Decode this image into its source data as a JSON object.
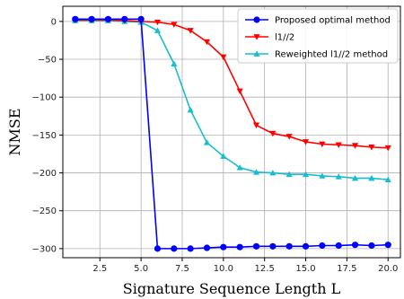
{
  "chart_data": {
    "type": "line",
    "xlabel": "Signature Sequence Length L",
    "ylabel": "NMSE",
    "xlim": [
      0.25,
      20.75
    ],
    "ylim": [
      -312,
      20
    ],
    "xticks": [
      2.5,
      5.0,
      7.5,
      10.0,
      12.5,
      15.0,
      17.5,
      20.0
    ],
    "xtick_labels": [
      "2.5",
      "5.0",
      "7.5",
      "10.0",
      "12.5",
      "15.0",
      "17.5",
      "20.0"
    ],
    "yticks": [
      0,
      -50,
      -100,
      -150,
      -200,
      -250,
      -300
    ],
    "ytick_labels": [
      "0",
      "−50",
      "−100",
      "−150",
      "−200",
      "−250",
      "−300"
    ],
    "grid": true,
    "legend_position": "top-right",
    "x": [
      1,
      2,
      3,
      4,
      5,
      6,
      7,
      8,
      9,
      10,
      11,
      12,
      13,
      14,
      15,
      16,
      17,
      18,
      19,
      20
    ],
    "series": [
      {
        "name": "Proposed optimal method",
        "color": "#0000ff",
        "marker": "circle",
        "values": [
          3,
          3,
          3,
          3,
          3,
          -300,
          -300,
          -300,
          -299,
          -298,
          -298,
          -297,
          -297,
          -297,
          -297,
          -296,
          -296,
          -295,
          -296,
          -295
        ]
      },
      {
        "name": "l1//2",
        "color": "#ff0000",
        "marker": "triangle-down",
        "values": [
          2,
          2,
          2,
          1,
          0,
          -1,
          -4,
          -12,
          -27,
          -47,
          -92,
          -137,
          -148,
          -152,
          -159,
          -162,
          -163,
          -164,
          -166,
          -167
        ]
      },
      {
        "name": "Reweighted l1//2 method",
        "color": "#17becf",
        "marker": "triangle-up",
        "values": [
          1,
          1,
          1,
          0,
          -1,
          -12,
          -56,
          -117,
          -160,
          -178,
          -193,
          -199,
          -200,
          -202,
          -202,
          -204,
          -205,
          -207,
          -207,
          -209
        ]
      }
    ]
  }
}
